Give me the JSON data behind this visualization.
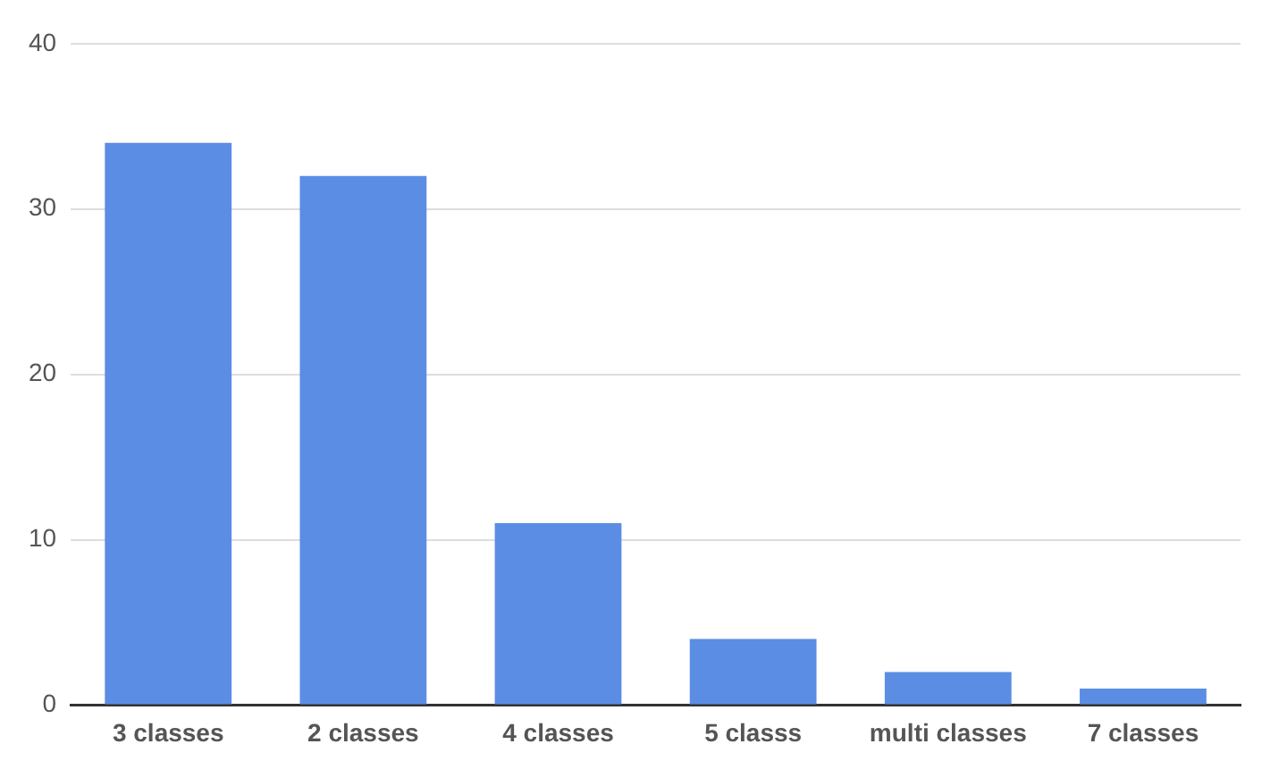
{
  "chart_data": {
    "type": "bar",
    "categories": [
      "3 classes",
      "2 classes",
      "4 classes",
      "5 classs",
      "multi classes",
      "7 classes"
    ],
    "values": [
      34,
      32,
      11,
      4,
      2,
      1
    ],
    "color": "#5b8de4",
    "ylim": [
      0,
      40
    ],
    "yticks": [
      0,
      10,
      20,
      30,
      40
    ],
    "grid": "y"
  }
}
